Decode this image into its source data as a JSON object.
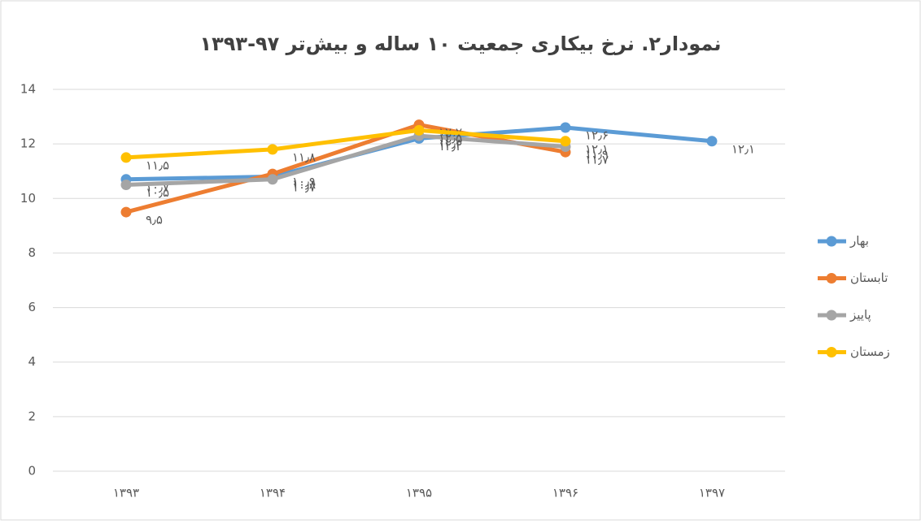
{
  "chart_data": {
    "type": "line",
    "title": "نمودار۲. نرخ بیکاری جمعیت ۱۰ ساله و بیش‌تر ۹۷-۱۳۹۳",
    "categories": [
      "۱۳۹۳",
      "۱۳۹۴",
      "۱۳۹۵",
      "۱۳۹۶",
      "۱۳۹۷"
    ],
    "series": [
      {
        "name": "بهار",
        "color": "#5b9bd5",
        "values": [
          10.7,
          10.8,
          12.2,
          12.6,
          12.1
        ],
        "value_labels": [
          "۱۰٫۷",
          "۱۰٫۸",
          "۱۲٫۲",
          "۱۲٫۶",
          "۱۲٫۱"
        ]
      },
      {
        "name": "تابستان",
        "color": "#ed7d31",
        "values": [
          9.5,
          10.9,
          12.7,
          11.7,
          null
        ],
        "value_labels": [
          "۹٫۵",
          "۱۰٫۹",
          "۱۲٫۷",
          "۱۱٫۷",
          null
        ]
      },
      {
        "name": "پاییز",
        "color": "#a5a5a5",
        "values": [
          10.5,
          10.7,
          12.3,
          11.9,
          null
        ],
        "value_labels": [
          "۱۰٫۵",
          "۱۰٫۷",
          "۱۲٫۳",
          "۱۱٫۹",
          null
        ]
      },
      {
        "name": "زمستان",
        "color": "#ffc000",
        "values": [
          11.5,
          11.8,
          12.5,
          12.1,
          null
        ],
        "value_labels": [
          "۱۱٫۵",
          "۱۱٫۸",
          "۱۲٫۵",
          "۱۲٫۱",
          null
        ]
      }
    ],
    "ylim": [
      0,
      14
    ],
    "yticks": [
      0,
      2,
      4,
      6,
      8,
      10,
      12,
      14
    ],
    "grid": true,
    "legend": "right"
  }
}
